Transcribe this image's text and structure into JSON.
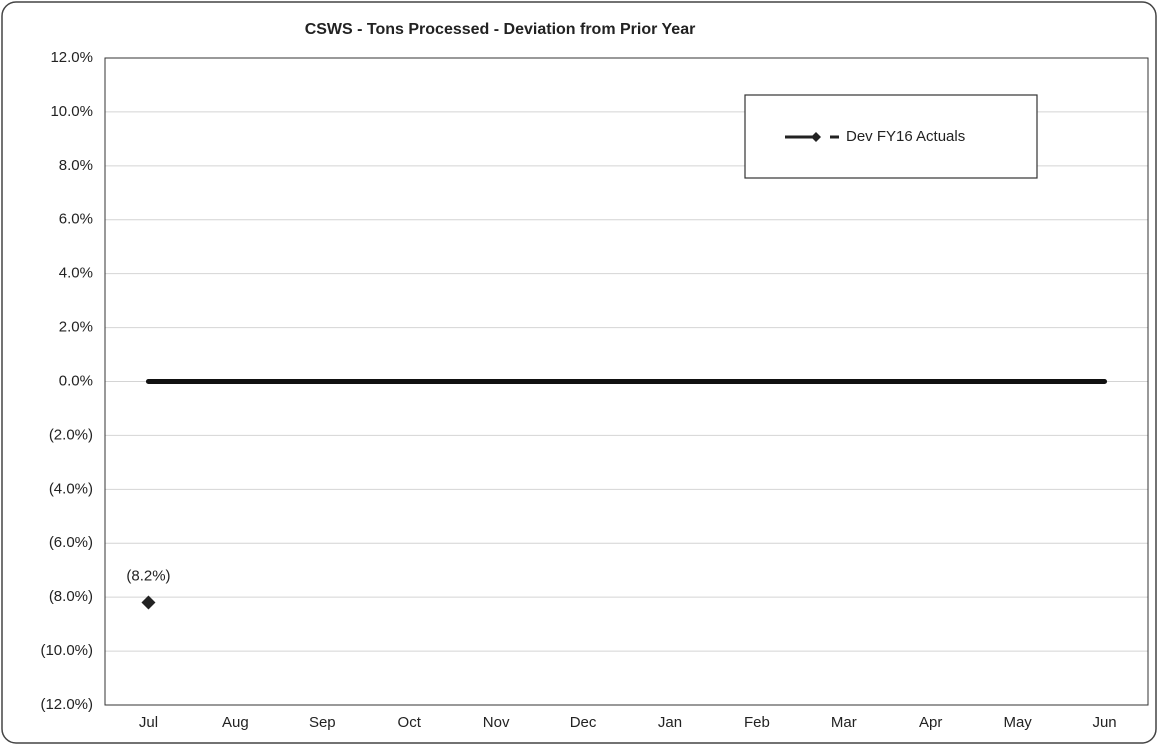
{
  "chart_data": {
    "type": "line",
    "title": "CSWS - Tons Processed - Deviation from Prior Year",
    "categories": [
      "Jul",
      "Aug",
      "Sep",
      "Oct",
      "Nov",
      "Dec",
      "Jan",
      "Feb",
      "Mar",
      "Apr",
      "May",
      "Jun"
    ],
    "series": [
      {
        "name": "Dev FY16 Actuals",
        "color": "#222222",
        "values": [
          -8.2,
          null,
          null,
          null,
          null,
          null,
          null,
          null,
          null,
          null,
          null,
          null
        ],
        "value_labels": [
          "(8.2%)",
          null,
          null,
          null,
          null,
          null,
          null,
          null,
          null,
          null,
          null,
          null
        ]
      }
    ],
    "ylim": [
      -12,
      12
    ],
    "yticks": [
      {
        "value": 12,
        "label": "12.0%"
      },
      {
        "value": 10,
        "label": "10.0%"
      },
      {
        "value": 8,
        "label": "8.0%"
      },
      {
        "value": 6,
        "label": "6.0%"
      },
      {
        "value": 4,
        "label": "4.0%"
      },
      {
        "value": 2,
        "label": "2.0%"
      },
      {
        "value": 0,
        "label": "0.0%"
      },
      {
        "value": -2,
        "label": "(2.0%)"
      },
      {
        "value": -4,
        "label": "(4.0%)"
      },
      {
        "value": -6,
        "label": "(6.0%)"
      },
      {
        "value": -8,
        "label": "(8.0%)"
      },
      {
        "value": -10,
        "label": "(10.0%)"
      },
      {
        "value": -12,
        "label": "(12.0%)"
      }
    ],
    "grid": true,
    "legend": "upper right"
  }
}
